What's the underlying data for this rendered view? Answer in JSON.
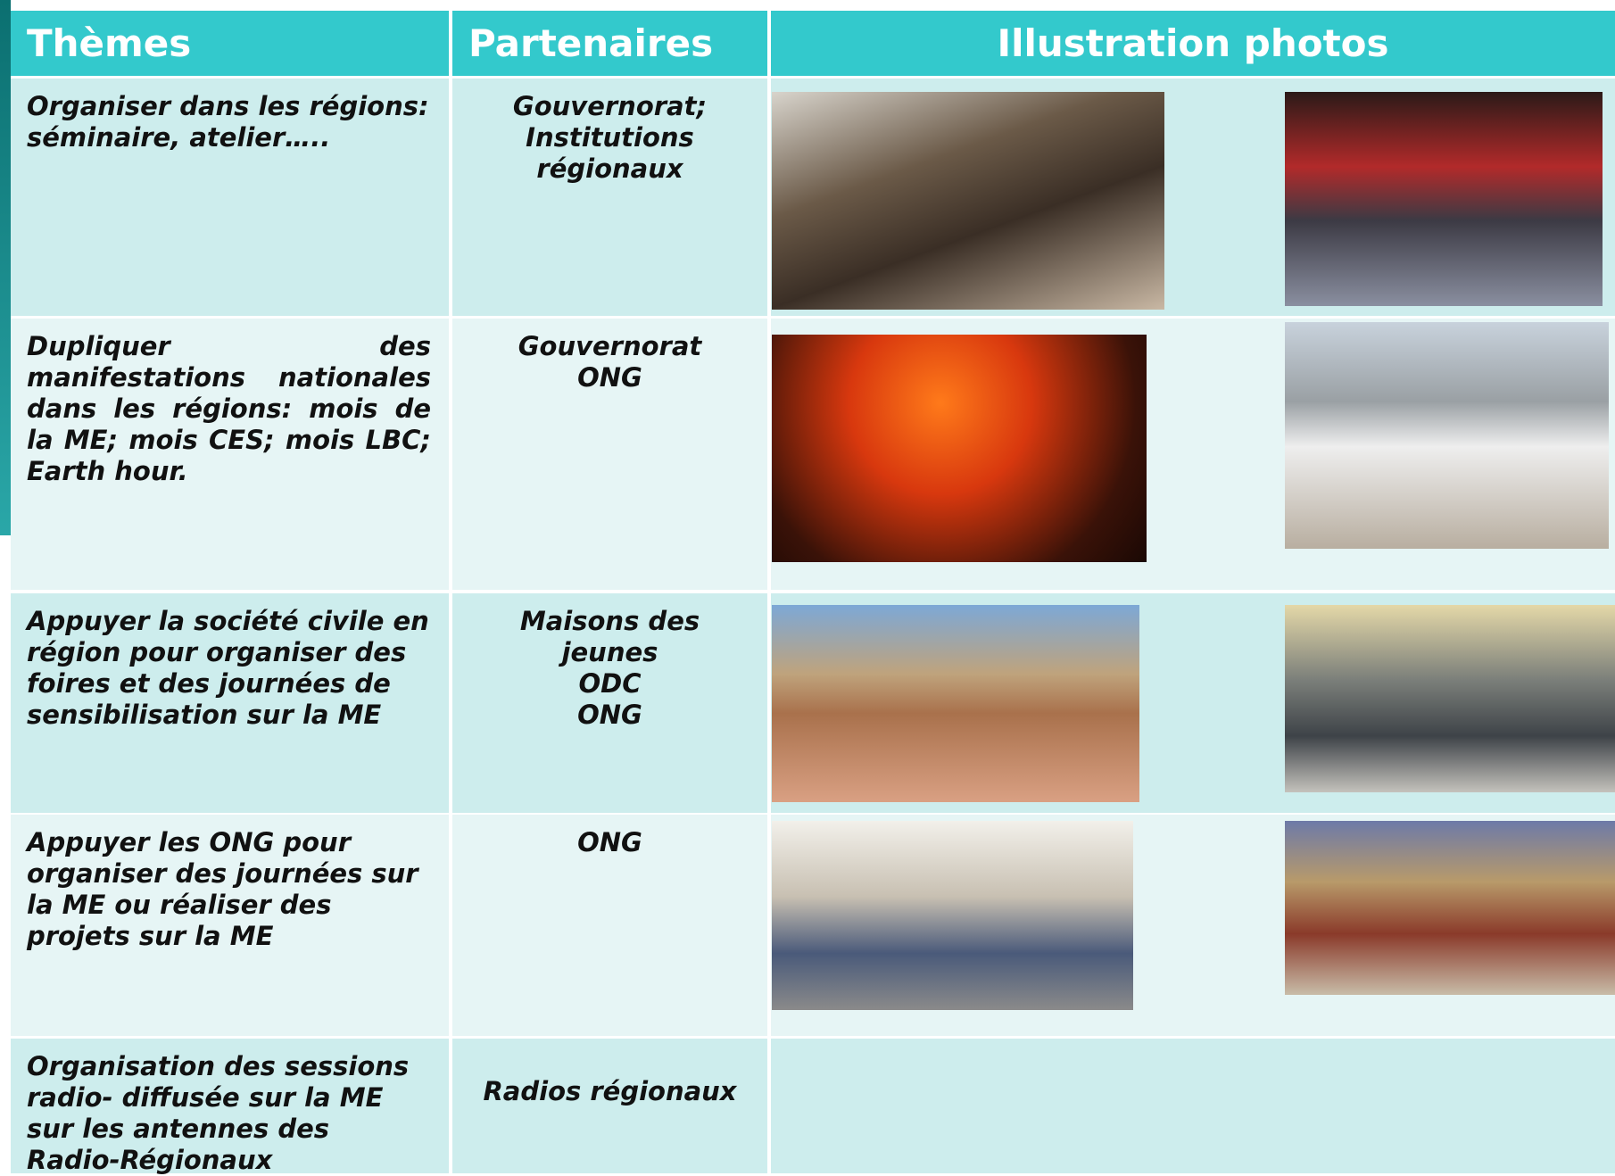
{
  "header": {
    "columns": [
      "Thèmes",
      "Partenaires",
      "Illustration photos"
    ]
  },
  "table": {
    "rows": [
      {
        "theme": "Organiser dans les régions: séminaire, atelier…..",
        "partners": [
          "Gouvernorat;",
          "Institutions",
          "régionaux"
        ]
      },
      {
        "theme": "Dupliquer des manifestations nationales dans les régions:  mois de la ME; mois CES; mois LBC; Earth hour.",
        "partners": [
          "Gouvernorat",
          "ONG"
        ]
      },
      {
        "theme": "Appuyer la société civile en région pour organiser des foires et des journées de sensibilisation sur la ME",
        "partners": [
          "Maisons des",
          "jeunes",
          "ODC",
          "ONG"
        ]
      },
      {
        "theme": "Appuyer les ONG pour organiser  des journées sur la ME ou réaliser des projets sur la ME",
        "partners": [
          "ONG"
        ]
      },
      {
        "theme": "Organisation des sessions radio- diffusée  sur la ME sur les antennes des Radio-Régionaux",
        "partners": [
          "Radios régionaux"
        ]
      }
    ]
  }
}
